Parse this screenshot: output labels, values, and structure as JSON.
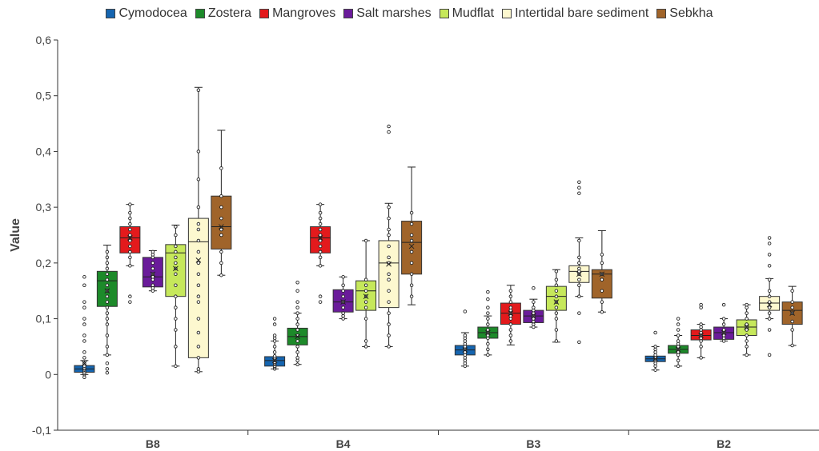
{
  "chart_data": {
    "type": "box",
    "ylabel": "Value",
    "ylim": [
      -0.1,
      0.6
    ],
    "y_ticks": [
      "-0,1",
      "0",
      "0,1",
      "0,2",
      "0,3",
      "0,4",
      "0,5",
      "0,6"
    ],
    "categories": [
      "B8",
      "B4",
      "B3",
      "B2"
    ],
    "legend_position": "top",
    "series": [
      {
        "name": "Cymodocea",
        "color": "#1565b0",
        "boxes": [
          {
            "min": 0.0,
            "q1": 0.004,
            "median": 0.01,
            "q3": 0.016,
            "max": 0.025,
            "mean": 0.02,
            "points": [
              -0.005,
              0.0,
              0.002,
              0.005,
              0.008,
              0.01,
              0.012,
              0.015,
              0.02,
              0.03,
              0.04,
              0.06,
              0.07,
              0.09,
              0.1,
              0.12,
              0.13,
              0.16,
              0.175
            ]
          },
          {
            "min": 0.01,
            "q1": 0.015,
            "median": 0.025,
            "q3": 0.032,
            "max": 0.06,
            "mean": 0.025,
            "points": [
              0.01,
              0.013,
              0.015,
              0.018,
              0.02,
              0.022,
              0.025,
              0.028,
              0.03,
              0.033,
              0.04,
              0.05,
              0.06,
              0.065,
              0.07,
              0.09,
              0.1
            ]
          },
          {
            "min": 0.015,
            "q1": 0.035,
            "median": 0.044,
            "q3": 0.052,
            "max": 0.075,
            "mean": 0.044,
            "points": [
              0.015,
              0.02,
              0.025,
              0.03,
              0.035,
              0.04,
              0.045,
              0.05,
              0.055,
              0.06,
              0.065,
              0.07,
              0.113
            ]
          },
          {
            "min": 0.008,
            "q1": 0.023,
            "median": 0.028,
            "q3": 0.033,
            "max": 0.05,
            "mean": 0.028,
            "points": [
              0.008,
              0.015,
              0.02,
              0.025,
              0.028,
              0.03,
              0.035,
              0.04,
              0.045,
              0.05,
              0.075
            ]
          }
        ]
      },
      {
        "name": "Zostera",
        "color": "#1d8a2a",
        "boxes": [
          {
            "min": 0.035,
            "q1": 0.122,
            "median": 0.168,
            "q3": 0.185,
            "max": 0.232,
            "mean": 0.15,
            "points": [
              0.003,
              0.01,
              0.02,
              0.035,
              0.05,
              0.07,
              0.09,
              0.1,
              0.11,
              0.12,
              0.13,
              0.14,
              0.15,
              0.16,
              0.17,
              0.18,
              0.19,
              0.2,
              0.21,
              0.22
            ]
          },
          {
            "min": 0.018,
            "q1": 0.053,
            "median": 0.068,
            "q3": 0.083,
            "max": 0.11,
            "mean": 0.068,
            "points": [
              0.018,
              0.025,
              0.03,
              0.04,
              0.05,
              0.06,
              0.07,
              0.08,
              0.09,
              0.1,
              0.11,
              0.12,
              0.13,
              0.15,
              0.165
            ]
          },
          {
            "min": 0.035,
            "q1": 0.065,
            "median": 0.075,
            "q3": 0.085,
            "max": 0.105,
            "mean": 0.075,
            "points": [
              0.035,
              0.045,
              0.055,
              0.065,
              0.07,
              0.075,
              0.08,
              0.09,
              0.1,
              0.11,
              0.12,
              0.135,
              0.148
            ]
          },
          {
            "min": 0.015,
            "q1": 0.038,
            "median": 0.045,
            "q3": 0.052,
            "max": 0.07,
            "mean": 0.045,
            "points": [
              0.015,
              0.025,
              0.035,
              0.04,
              0.045,
              0.05,
              0.055,
              0.06,
              0.07,
              0.08,
              0.09,
              0.1
            ]
          }
        ]
      },
      {
        "name": "Mangroves",
        "color": "#e31a1c",
        "boxes": [
          {
            "min": 0.195,
            "q1": 0.218,
            "median": 0.245,
            "q3": 0.265,
            "max": 0.305,
            "mean": 0.245,
            "points": [
              0.13,
              0.14,
              0.195,
              0.21,
              0.22,
              0.23,
              0.24,
              0.25,
              0.26,
              0.27,
              0.28,
              0.29,
              0.305
            ]
          },
          {
            "min": 0.195,
            "q1": 0.218,
            "median": 0.245,
            "q3": 0.265,
            "max": 0.305,
            "mean": 0.245,
            "points": [
              0.13,
              0.14,
              0.195,
              0.21,
              0.22,
              0.23,
              0.24,
              0.25,
              0.26,
              0.27,
              0.28,
              0.29,
              0.305
            ]
          },
          {
            "min": 0.053,
            "q1": 0.09,
            "median": 0.11,
            "q3": 0.128,
            "max": 0.16,
            "mean": 0.11,
            "points": [
              0.06,
              0.07,
              0.08,
              0.09,
              0.1,
              0.105,
              0.11,
              0.115,
              0.12,
              0.13,
              0.14,
              0.15
            ]
          },
          {
            "min": 0.03,
            "q1": 0.062,
            "median": 0.07,
            "q3": 0.08,
            "max": 0.09,
            "mean": 0.07,
            "points": [
              0.03,
              0.05,
              0.06,
              0.065,
              0.07,
              0.075,
              0.08,
              0.085,
              0.09,
              0.12,
              0.125
            ]
          }
        ]
      },
      {
        "name": "Salt marshes",
        "color": "#6a1b9a",
        "boxes": [
          {
            "min": 0.15,
            "q1": 0.157,
            "median": 0.175,
            "q3": 0.21,
            "max": 0.222,
            "mean": 0.18,
            "points": [
              0.15,
              0.155,
              0.16,
              0.17,
              0.175,
              0.18,
              0.19,
              0.2,
              0.21,
              0.215,
              0.22
            ]
          },
          {
            "min": 0.1,
            "q1": 0.112,
            "median": 0.13,
            "q3": 0.152,
            "max": 0.175,
            "mean": 0.13,
            "points": [
              0.1,
              0.105,
              0.11,
              0.12,
              0.13,
              0.14,
              0.15,
              0.16,
              0.175
            ]
          },
          {
            "min": 0.085,
            "q1": 0.093,
            "median": 0.105,
            "q3": 0.115,
            "max": 0.135,
            "mean": 0.105,
            "points": [
              0.085,
              0.09,
              0.095,
              0.1,
              0.105,
              0.11,
              0.115,
              0.12,
              0.13,
              0.155
            ]
          },
          {
            "min": 0.06,
            "q1": 0.063,
            "median": 0.075,
            "q3": 0.085,
            "max": 0.1,
            "mean": 0.075,
            "points": [
              0.06,
              0.065,
              0.07,
              0.075,
              0.08,
              0.09,
              0.1,
              0.125
            ]
          }
        ]
      },
      {
        "name": "Mudflat",
        "color": "#c6e85b",
        "boxes": [
          {
            "min": 0.015,
            "q1": 0.14,
            "median": 0.218,
            "q3": 0.233,
            "max": 0.268,
            "mean": 0.19,
            "points": [
              0.015,
              0.05,
              0.08,
              0.1,
              0.12,
              0.14,
              0.16,
              0.18,
              0.19,
              0.2,
              0.21,
              0.22,
              0.23,
              0.25,
              0.265
            ]
          },
          {
            "min": 0.05,
            "q1": 0.115,
            "median": 0.15,
            "q3": 0.168,
            "max": 0.24,
            "mean": 0.14,
            "points": [
              0.05,
              0.06,
              0.1,
              0.12,
              0.13,
              0.14,
              0.15,
              0.16,
              0.17,
              0.24
            ]
          },
          {
            "min": 0.058,
            "q1": 0.115,
            "median": 0.14,
            "q3": 0.158,
            "max": 0.188,
            "mean": 0.13,
            "points": [
              0.06,
              0.08,
              0.1,
              0.11,
              0.12,
              0.13,
              0.14,
              0.15,
              0.16,
              0.17,
              0.185
            ]
          },
          {
            "min": 0.035,
            "q1": 0.07,
            "median": 0.085,
            "q3": 0.098,
            "max": 0.125,
            "mean": 0.085,
            "points": [
              0.035,
              0.05,
              0.06,
              0.07,
              0.08,
              0.085,
              0.09,
              0.1,
              0.11,
              0.12,
              0.125
            ]
          }
        ]
      },
      {
        "name": "Intertidal bare sediment",
        "color": "#fdf8cf",
        "boxes": [
          {
            "min": 0.005,
            "q1": 0.03,
            "median": 0.238,
            "q3": 0.28,
            "max": 0.515,
            "mean": 0.205,
            "points": [
              0.005,
              0.01,
              0.03,
              0.05,
              0.075,
              0.1,
              0.13,
              0.14,
              0.16,
              0.18,
              0.2,
              0.22,
              0.24,
              0.26,
              0.27,
              0.3,
              0.35,
              0.4,
              0.51
            ]
          },
          {
            "min": 0.05,
            "q1": 0.12,
            "median": 0.2,
            "q3": 0.24,
            "max": 0.307,
            "mean": 0.198,
            "points": [
              0.05,
              0.07,
              0.09,
              0.11,
              0.13,
              0.15,
              0.17,
              0.18,
              0.2,
              0.21,
              0.23,
              0.25,
              0.26,
              0.28,
              0.3,
              0.435,
              0.445
            ]
          },
          {
            "min": 0.14,
            "q1": 0.165,
            "median": 0.185,
            "q3": 0.195,
            "max": 0.245,
            "mean": 0.18,
            "points": [
              0.058,
              0.11,
              0.14,
              0.16,
              0.17,
              0.18,
              0.185,
              0.19,
              0.2,
              0.21,
              0.24,
              0.325,
              0.335,
              0.345
            ]
          },
          {
            "min": 0.1,
            "q1": 0.115,
            "median": 0.128,
            "q3": 0.14,
            "max": 0.172,
            "mean": 0.125,
            "points": [
              0.035,
              0.08,
              0.1,
              0.11,
              0.12,
              0.13,
              0.14,
              0.15,
              0.17,
              0.195,
              0.215,
              0.235,
              0.245
            ]
          }
        ]
      },
      {
        "name": "Sebkha",
        "color": "#a0642a",
        "boxes": [
          {
            "min": 0.178,
            "q1": 0.225,
            "median": 0.265,
            "q3": 0.32,
            "max": 0.438,
            "mean": 0.265,
            "points": [
              0.178,
              0.2,
              0.22,
              0.25,
              0.26,
              0.28,
              0.3,
              0.32,
              0.37
            ]
          },
          {
            "min": 0.125,
            "q1": 0.18,
            "median": 0.237,
            "q3": 0.275,
            "max": 0.372,
            "mean": 0.23,
            "points": [
              0.14,
              0.16,
              0.18,
              0.2,
              0.22,
              0.24,
              0.25,
              0.27,
              0.29
            ]
          },
          {
            "min": 0.112,
            "q1": 0.137,
            "median": 0.18,
            "q3": 0.188,
            "max": 0.258,
            "mean": 0.18,
            "points": [
              0.112,
              0.13,
              0.15,
              0.17,
              0.18,
              0.2,
              0.215
            ]
          },
          {
            "min": 0.052,
            "q1": 0.09,
            "median": 0.115,
            "q3": 0.13,
            "max": 0.158,
            "mean": 0.11,
            "points": [
              0.052,
              0.08,
              0.095,
              0.11,
              0.12,
              0.13,
              0.15
            ]
          }
        ]
      }
    ]
  }
}
